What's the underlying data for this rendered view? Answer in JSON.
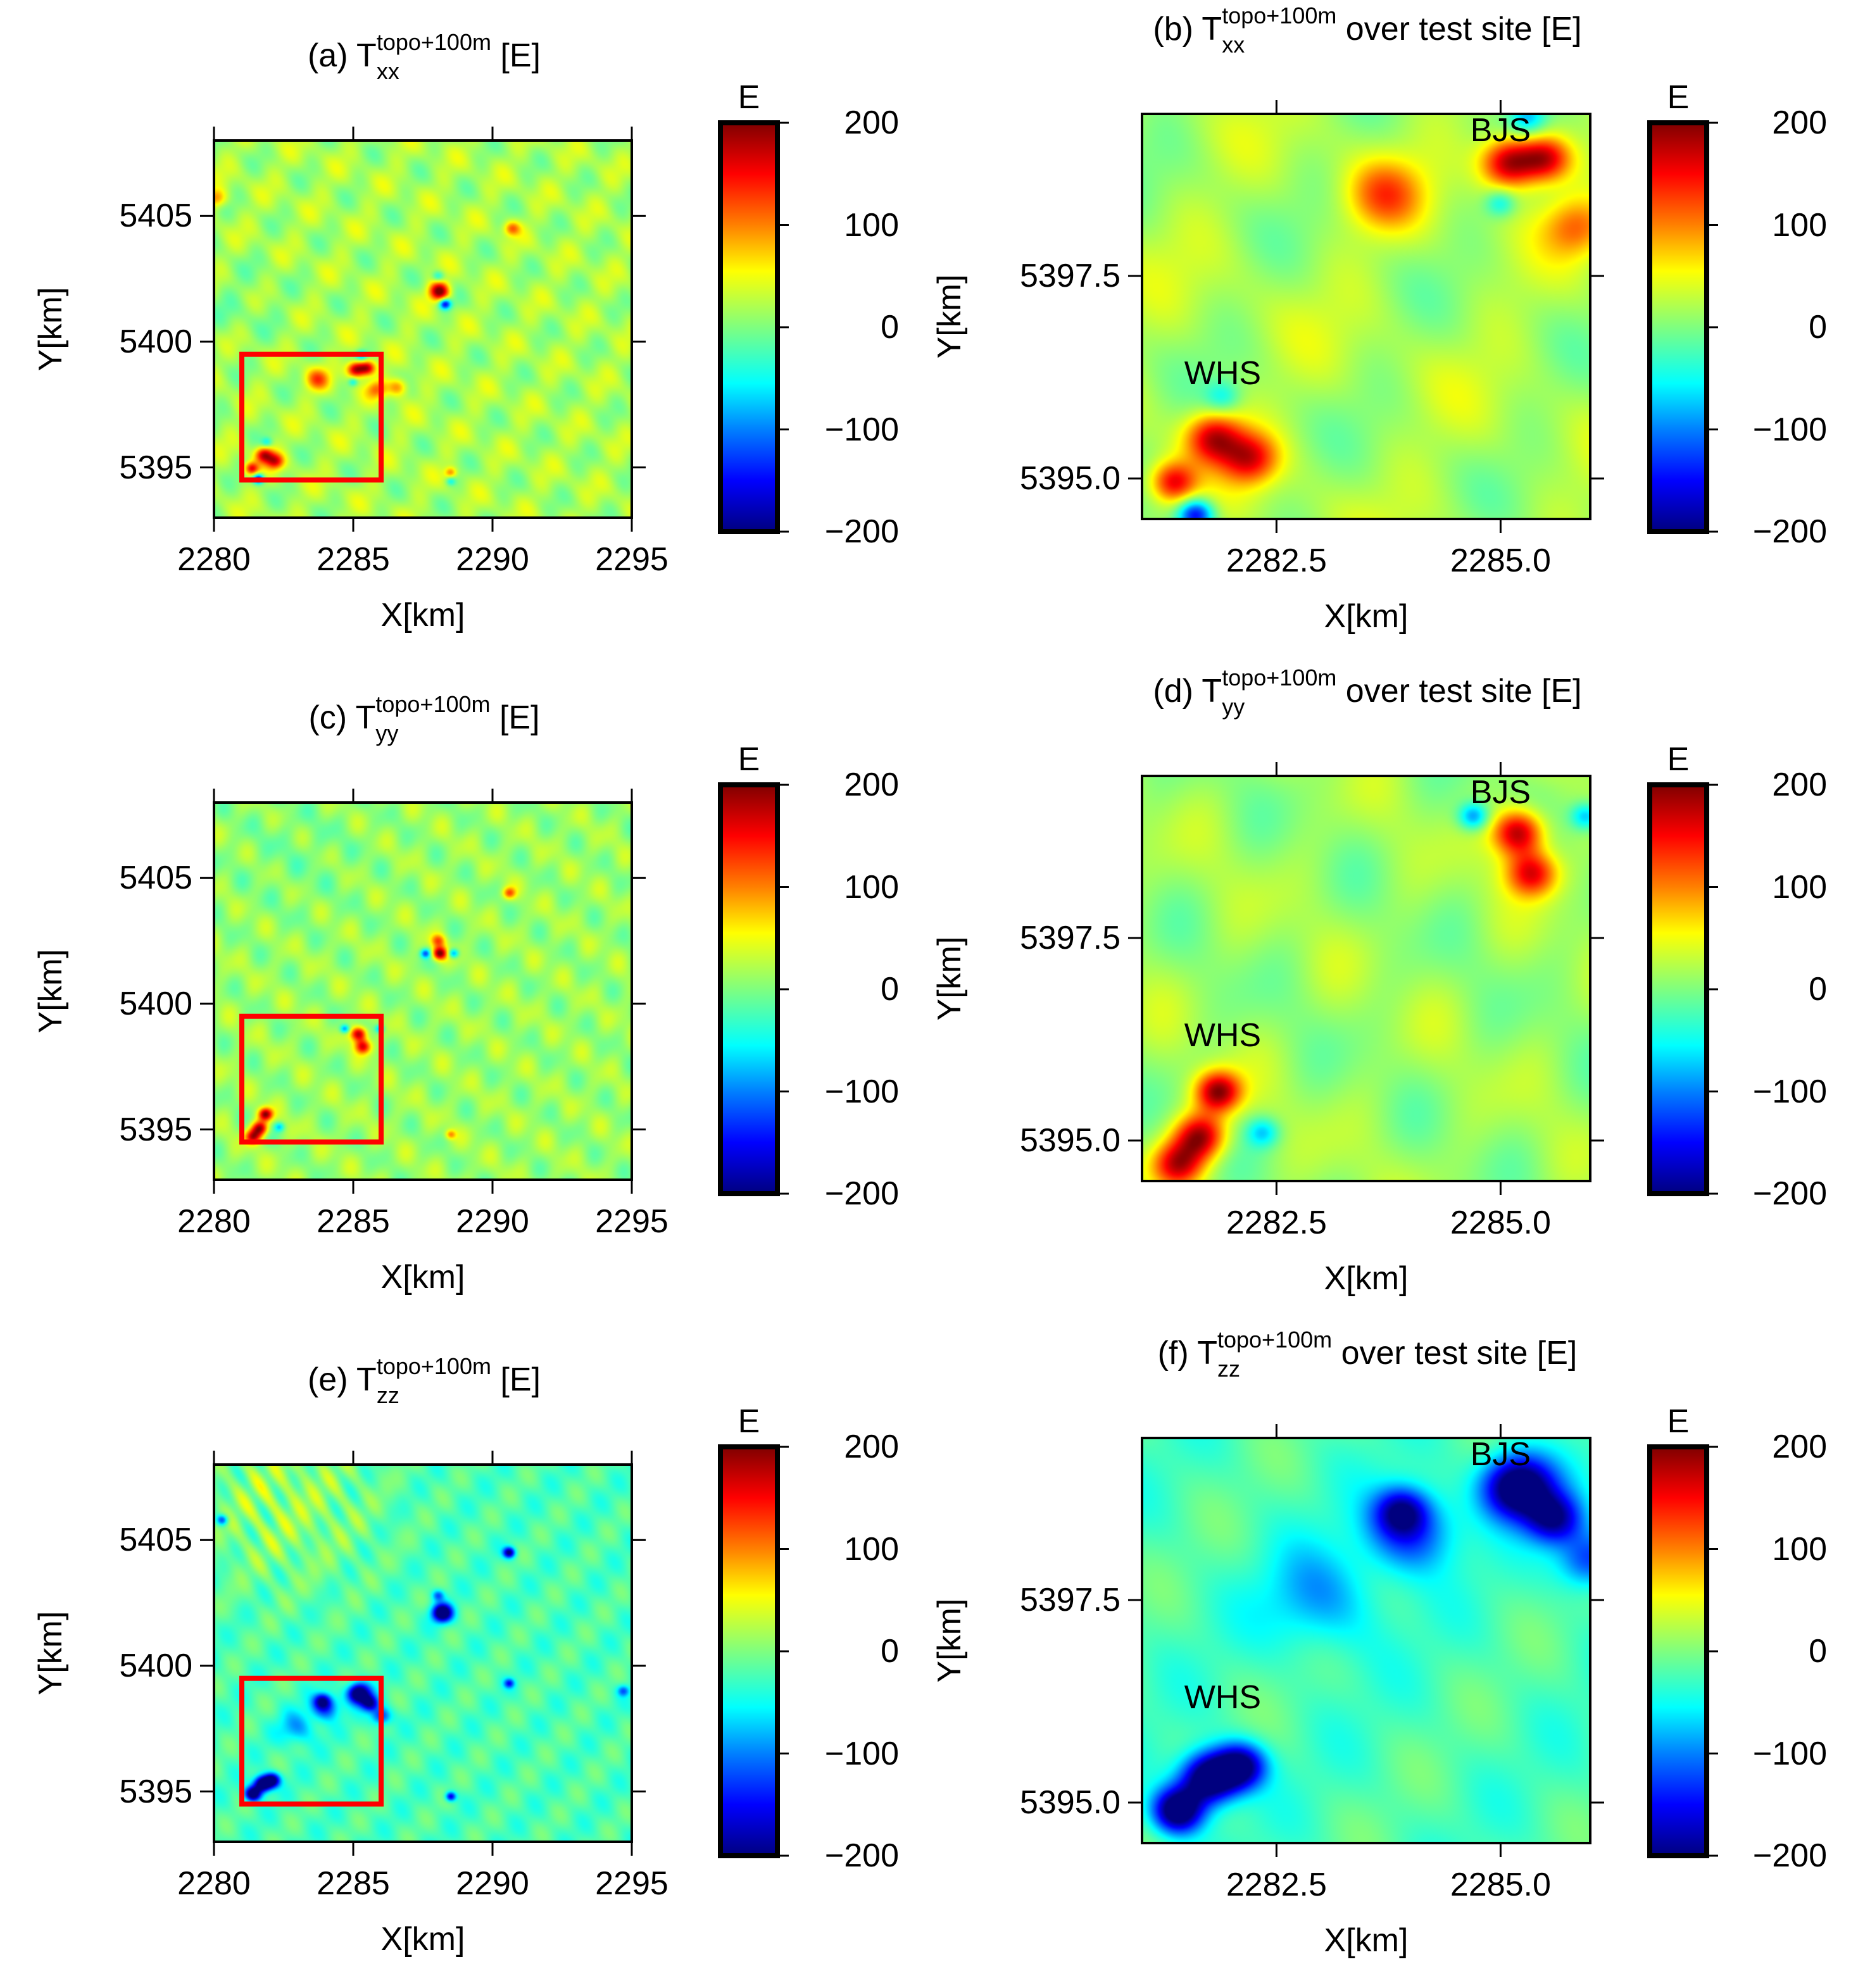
{
  "colormap": {
    "stops": [
      [
        -200,
        "#00007f"
      ],
      [
        -150,
        "#0000ff"
      ],
      [
        -100,
        "#0080ff"
      ],
      [
        -55,
        "#00ffff"
      ],
      [
        0,
        "#7fff7f"
      ],
      [
        55,
        "#ffff00"
      ],
      [
        100,
        "#ff8000"
      ],
      [
        150,
        "#ff0000"
      ],
      [
        200,
        "#7f0000"
      ]
    ],
    "highlight_box_color": "#ff0000"
  },
  "anomalies": {
    "xx": [
      [
        2285.1,
        5398.9,
        180,
        0.22
      ],
      [
        2285.5,
        5398.95,
        150,
        0.2
      ],
      [
        2285.0,
        5398.4,
        -70,
        0.12
      ],
      [
        2285.3,
        5399.45,
        -90,
        0.15
      ],
      [
        2283.7,
        5398.5,
        90,
        0.3
      ],
      [
        2285.85,
        5398.1,
        80,
        0.25
      ],
      [
        2281.8,
        5395.5,
        150,
        0.22
      ],
      [
        2282.2,
        5395.25,
        130,
        0.22
      ],
      [
        2281.35,
        5394.95,
        140,
        0.18
      ],
      [
        2281.6,
        5394.55,
        -170,
        0.14
      ],
      [
        2281.9,
        5396.0,
        -60,
        0.14
      ],
      [
        2288.1,
        5402.0,
        190,
        0.25
      ],
      [
        2288.3,
        5401.5,
        -170,
        0.15
      ],
      [
        2288.05,
        5402.6,
        -70,
        0.15
      ],
      [
        2290.7,
        5404.5,
        90,
        0.2
      ],
      [
        2288.5,
        5394.8,
        80,
        0.15
      ],
      [
        2288.5,
        5394.45,
        -60,
        0.12
      ],
      [
        2280.1,
        5405.7,
        80,
        0.25
      ],
      [
        2286.6,
        5398.2,
        90,
        0.25
      ]
    ],
    "yy": [
      [
        2285.2,
        5398.8,
        180,
        0.2
      ],
      [
        2285.35,
        5398.3,
        150,
        0.2
      ],
      [
        2284.7,
        5399.0,
        -110,
        0.12
      ],
      [
        2285.95,
        5399.0,
        -90,
        0.12
      ],
      [
        2281.85,
        5395.6,
        180,
        0.18
      ],
      [
        2281.65,
        5395.05,
        170,
        0.2
      ],
      [
        2281.4,
        5394.7,
        150,
        0.2
      ],
      [
        2282.35,
        5395.1,
        -80,
        0.13
      ],
      [
        2288.1,
        5402.0,
        190,
        0.18
      ],
      [
        2288.05,
        5402.5,
        100,
        0.18
      ],
      [
        2287.6,
        5402.0,
        -120,
        0.13
      ],
      [
        2288.6,
        5402.0,
        -110,
        0.13
      ],
      [
        2290.6,
        5404.4,
        100,
        0.16
      ],
      [
        2288.5,
        5394.8,
        80,
        0.13
      ]
    ],
    "zz": [
      [
        2285.2,
        5398.9,
        -240,
        0.28
      ],
      [
        2285.6,
        5398.5,
        -160,
        0.22
      ],
      [
        2286.0,
        5398.0,
        -120,
        0.25
      ],
      [
        2284.0,
        5398.35,
        -120,
        0.35
      ],
      [
        2283.0,
        5397.5,
        -70,
        0.45
      ],
      [
        2281.75,
        5395.3,
        -240,
        0.22
      ],
      [
        2281.4,
        5394.9,
        -230,
        0.2
      ],
      [
        2282.1,
        5395.45,
        -190,
        0.2
      ],
      [
        2288.2,
        5402.1,
        -240,
        0.25
      ],
      [
        2288.05,
        5402.8,
        -90,
        0.15
      ],
      [
        2290.6,
        5404.5,
        -180,
        0.15
      ],
      [
        2288.5,
        5394.8,
        -150,
        0.13
      ],
      [
        2283.9,
        5398.6,
        -120,
        0.2
      ],
      [
        2280.3,
        5405.8,
        -120,
        0.15
      ],
      [
        2290.6,
        5399.3,
        -110,
        0.13
      ],
      [
        2294.7,
        5399.0,
        -90,
        0.15
      ]
    ]
  },
  "chart_data": [
    {
      "panel": "a",
      "type": "heatmap",
      "component": "xx",
      "title": {
        "prefix": "(a) T",
        "sup": "topo+100m",
        "sub": "xx",
        "suffix": " [E]"
      },
      "xlabel": "X[km]",
      "ylabel": "Y[km]",
      "xlim": [
        2280,
        2295
      ],
      "ylim": [
        5393,
        5408
      ],
      "xticks": [
        2280,
        2285,
        2290,
        2295
      ],
      "xtick_labels": [
        "2280",
        "2285",
        "2290",
        "2295"
      ],
      "yticks": [
        5395,
        5400,
        5405
      ],
      "ytick_labels": [
        "5395",
        "5400",
        "5405"
      ],
      "highlight_box": {
        "x": [
          2281,
          2286
        ],
        "y": [
          5394.5,
          5399.5
        ]
      },
      "sites": [],
      "colorbar": {
        "label": "E",
        "range": [
          -200,
          200
        ],
        "ticks": [
          200,
          100,
          0,
          -100,
          -200
        ],
        "tick_labels": [
          "200",
          "100",
          "0",
          "−100",
          "−200"
        ]
      }
    },
    {
      "panel": "b",
      "type": "heatmap",
      "component": "xx",
      "title": {
        "prefix": "(b) T",
        "sup": "topo+100m",
        "sub": "xx",
        "suffix": " over test site [E]"
      },
      "xlabel": "X[km]",
      "ylabel": "Y[km]",
      "xlim": [
        2281,
        2286
      ],
      "ylim": [
        5394.5,
        5399.5
      ],
      "xticks": [
        2282.5,
        2285.0
      ],
      "xtick_labels": [
        "2282.5",
        "2285.0"
      ],
      "yticks": [
        5395.0,
        5397.5
      ],
      "ytick_labels": [
        "5395.0",
        "5397.5"
      ],
      "sites": [
        {
          "label": "WHS",
          "x": 2281.9,
          "y": 5396.3
        },
        {
          "label": "BJS",
          "x": 2285.0,
          "y": 5399.3
        }
      ],
      "colorbar": {
        "label": "E",
        "range": [
          -200,
          200
        ],
        "ticks": [
          200,
          100,
          0,
          -100,
          -200
        ],
        "tick_labels": [
          "200",
          "100",
          "0",
          "−100",
          "−200"
        ]
      }
    },
    {
      "panel": "c",
      "type": "heatmap",
      "component": "yy",
      "title": {
        "prefix": "(c) T",
        "sup": "topo+100m",
        "sub": "yy",
        "suffix": " [E]"
      },
      "xlabel": "X[km]",
      "ylabel": "Y[km]",
      "xlim": [
        2280,
        2295
      ],
      "ylim": [
        5393,
        5408
      ],
      "xticks": [
        2280,
        2285,
        2290,
        2295
      ],
      "xtick_labels": [
        "2280",
        "2285",
        "2290",
        "2295"
      ],
      "yticks": [
        5395,
        5400,
        5405
      ],
      "ytick_labels": [
        "5395",
        "5400",
        "5405"
      ],
      "highlight_box": {
        "x": [
          2281,
          2286
        ],
        "y": [
          5394.5,
          5399.5
        ]
      },
      "sites": [],
      "colorbar": {
        "label": "E",
        "range": [
          -200,
          200
        ],
        "ticks": [
          200,
          100,
          0,
          -100,
          -200
        ],
        "tick_labels": [
          "200",
          "100",
          "0",
          "−100",
          "−200"
        ]
      }
    },
    {
      "panel": "d",
      "type": "heatmap",
      "component": "yy",
      "title": {
        "prefix": "(d) T",
        "sup": "topo+100m",
        "sub": "yy",
        "suffix": " over test site [E]"
      },
      "xlabel": "X[km]",
      "ylabel": "Y[km]",
      "xlim": [
        2281,
        2286
      ],
      "ylim": [
        5394.5,
        5399.5
      ],
      "xticks": [
        2282.5,
        2285.0
      ],
      "xtick_labels": [
        "2282.5",
        "2285.0"
      ],
      "yticks": [
        5395.0,
        5397.5
      ],
      "ytick_labels": [
        "5395.0",
        "5397.5"
      ],
      "sites": [
        {
          "label": "WHS",
          "x": 2281.9,
          "y": 5396.3
        },
        {
          "label": "BJS",
          "x": 2285.0,
          "y": 5399.3
        }
      ],
      "colorbar": {
        "label": "E",
        "range": [
          -200,
          200
        ],
        "ticks": [
          200,
          100,
          0,
          -100,
          -200
        ],
        "tick_labels": [
          "200",
          "100",
          "0",
          "−100",
          "−200"
        ]
      }
    },
    {
      "panel": "e",
      "type": "heatmap",
      "component": "zz",
      "title": {
        "prefix": "(e) T",
        "sup": "topo+100m",
        "sub": "zz",
        "suffix": " [E]"
      },
      "xlabel": "X[km]",
      "ylabel": "Y[km]",
      "xlim": [
        2280,
        2295
      ],
      "ylim": [
        5393,
        5408
      ],
      "xticks": [
        2280,
        2285,
        2290,
        2295
      ],
      "xtick_labels": [
        "2280",
        "2285",
        "2290",
        "2295"
      ],
      "yticks": [
        5395,
        5400,
        5405
      ],
      "ytick_labels": [
        "5395",
        "5400",
        "5405"
      ],
      "highlight_box": {
        "x": [
          2281,
          2286
        ],
        "y": [
          5394.5,
          5399.5
        ]
      },
      "sites": [],
      "colorbar": {
        "label": "E",
        "range": [
          -200,
          200
        ],
        "ticks": [
          200,
          100,
          0,
          -100,
          -200
        ],
        "tick_labels": [
          "200",
          "100",
          "0",
          "−100",
          "−200"
        ]
      }
    },
    {
      "panel": "f",
      "type": "heatmap",
      "component": "zz",
      "title": {
        "prefix": "(f) T",
        "sup": "topo+100m",
        "sub": "zz",
        "suffix": " over test site [E]"
      },
      "xlabel": "X[km]",
      "ylabel": "Y[km]",
      "xlim": [
        2281,
        2286
      ],
      "ylim": [
        5394.5,
        5399.5
      ],
      "xticks": [
        2282.5,
        2285.0
      ],
      "xtick_labels": [
        "2282.5",
        "2285.0"
      ],
      "yticks": [
        5395.0,
        5397.5
      ],
      "ytick_labels": [
        "5395.0",
        "5397.5"
      ],
      "sites": [
        {
          "label": "WHS",
          "x": 2281.9,
          "y": 5396.3
        },
        {
          "label": "BJS",
          "x": 2285.0,
          "y": 5399.3
        }
      ],
      "colorbar": {
        "label": "E",
        "range": [
          -200,
          200
        ],
        "ticks": [
          200,
          100,
          0,
          -100,
          -200
        ],
        "tick_labels": [
          "200",
          "100",
          "0",
          "−100",
          "−200"
        ]
      }
    }
  ]
}
